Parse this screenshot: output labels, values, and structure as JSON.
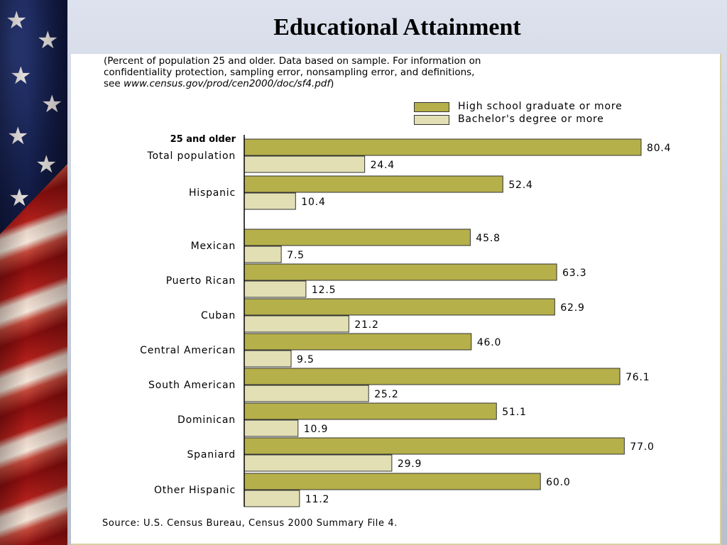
{
  "slide": {
    "title": "Educational Attainment"
  },
  "note": {
    "line1": "(Percent of population 25 and older.  Data based on sample.  For information on",
    "line2": "confidentiality protection, sampling error, nonsampling error, and definitions,",
    "line3_prefix": "see ",
    "line3_url": "www.census.gov/prod/cen2000/doc/sf4.pdf",
    "line3_suffix": ")"
  },
  "source": "Source: U.S. Census Bureau, Census 2000 Summary File 4.",
  "colors": {
    "high_school": "#b5b04a",
    "bachelors": "#e2dfb4",
    "bar_border": "#333333"
  },
  "chart_data": {
    "type": "bar",
    "orientation": "horizontal",
    "group_label": "25 and older",
    "categories": [
      "Total population",
      "Hispanic",
      "Mexican",
      "Puerto Rican",
      "Cuban",
      "Central American",
      "South American",
      "Dominican",
      "Spaniard",
      "Other Hispanic"
    ],
    "series": [
      {
        "name": "High school graduate or more",
        "values": [
          80.4,
          52.4,
          45.8,
          63.3,
          62.9,
          46.0,
          76.1,
          51.1,
          77.0,
          60.0
        ],
        "labels": [
          "80.4",
          "52.4",
          "45.8",
          "63.3",
          "62.9",
          "46.0",
          "76.1",
          "51.1",
          "77.0",
          "60.0"
        ]
      },
      {
        "name": "Bachelor's degree or more",
        "values": [
          24.4,
          10.4,
          7.5,
          12.5,
          21.2,
          9.5,
          25.2,
          10.9,
          29.9,
          11.2
        ],
        "labels": [
          "24.4",
          "10.4",
          "7.5",
          "12.5",
          "21.2",
          "9.5",
          "25.2",
          "10.9",
          "29.9",
          "11.2"
        ]
      }
    ],
    "xlim": [
      0,
      100
    ],
    "legend_position": "top-right",
    "grid": false
  }
}
